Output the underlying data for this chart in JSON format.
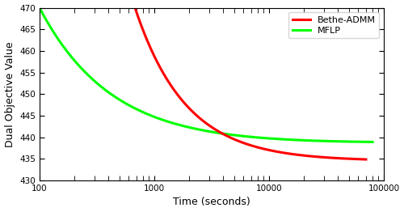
{
  "title": "",
  "xlabel": "Time (seconds)",
  "ylabel": "Dual Objective Value",
  "xlim": [
    100,
    100000
  ],
  "ylim": [
    430,
    470
  ],
  "yticks": [
    430,
    435,
    440,
    445,
    450,
    455,
    460,
    465,
    470
  ],
  "xticks": [
    100,
    1000,
    10000,
    100000
  ],
  "xtick_labels": [
    "100",
    "1000",
    "10000",
    "100000"
  ],
  "legend_labels": [
    "Bethe-ADMM",
    "MFLP"
  ],
  "bethe_color": "#ff0000",
  "mflp_color": "#00ff00",
  "background_color": "#ffffff",
  "linewidth": 2.2,
  "mflp_x_start": 100,
  "mflp_x_end": 80000,
  "mflp_y_start": 470,
  "mflp_y_plateau": 437.8,
  "mflp_decay": 0.65,
  "bethe_x_start": 680,
  "bethe_x_end": 70000,
  "bethe_y_start": 470,
  "bethe_y_end": 434.5,
  "bethe_decay": 0.55
}
